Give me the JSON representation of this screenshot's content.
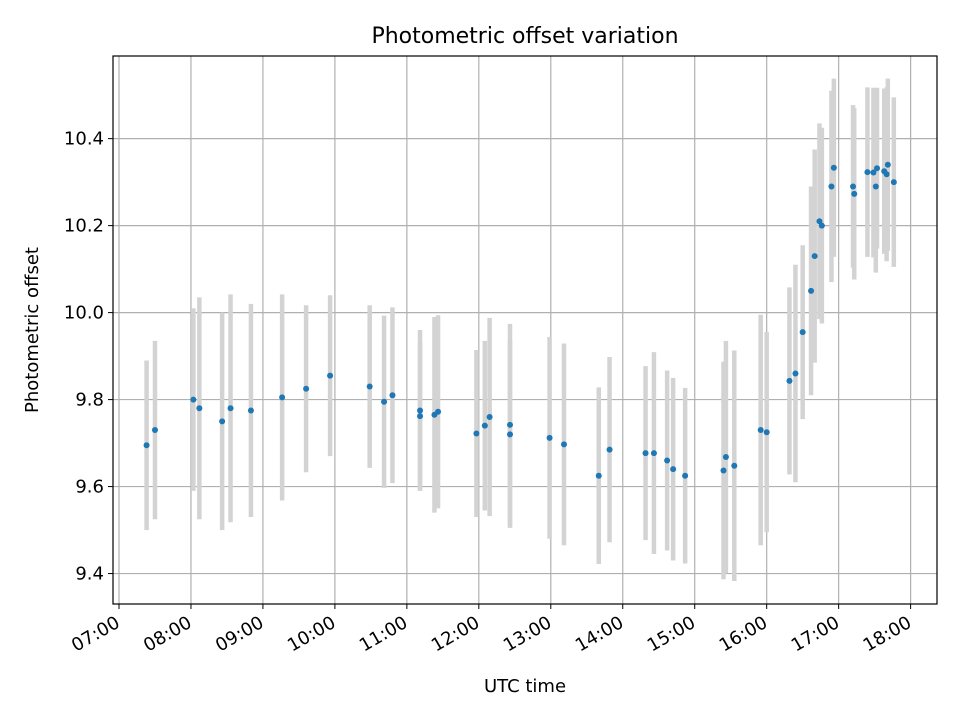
{
  "chart_data": {
    "type": "scatter",
    "title": "Photometric offset variation",
    "xlabel": "UTC time",
    "ylabel": "Photometric offset",
    "x_axis_kind": "time",
    "xlim": [
      "06:55",
      "18:22"
    ],
    "ylim": [
      9.33,
      10.59
    ],
    "x_ticks": [
      "07:00",
      "08:00",
      "09:00",
      "10:00",
      "11:00",
      "12:00",
      "13:00",
      "14:00",
      "15:00",
      "16:00",
      "17:00",
      "18:00"
    ],
    "y_ticks": [
      "9.4",
      "9.6",
      "9.8",
      "10.0",
      "10.2",
      "10.4"
    ],
    "grid": true,
    "colors": {
      "marker": "#1f77b4",
      "errorbar": "#d3d3d3",
      "grid": "#b0b0b0"
    },
    "points": [
      {
        "t": "07:23",
        "y": 9.695,
        "err": 0.195
      },
      {
        "t": "07:30",
        "y": 9.73,
        "err": 0.205
      },
      {
        "t": "08:02",
        "y": 9.8,
        "err": 0.21
      },
      {
        "t": "08:07",
        "y": 9.78,
        "err": 0.255
      },
      {
        "t": "08:26",
        "y": 9.75,
        "err": 0.25
      },
      {
        "t": "08:33",
        "y": 9.78,
        "err": 0.262
      },
      {
        "t": "08:50",
        "y": 9.775,
        "err": 0.245
      },
      {
        "t": "09:16",
        "y": 9.805,
        "err": 0.237
      },
      {
        "t": "09:36",
        "y": 9.825,
        "err": 0.192
      },
      {
        "t": "09:56",
        "y": 9.855,
        "err": 0.185
      },
      {
        "t": "10:29",
        "y": 9.83,
        "err": 0.187
      },
      {
        "t": "10:41",
        "y": 9.795,
        "err": 0.198
      },
      {
        "t": "10:48",
        "y": 9.81,
        "err": 0.202
      },
      {
        "t": "11:11",
        "y": 9.775,
        "err": 0.185
      },
      {
        "t": "11:11",
        "y": 9.762,
        "err": 0.17
      },
      {
        "t": "11:23",
        "y": 9.765,
        "err": 0.225
      },
      {
        "t": "11:26",
        "y": 9.772,
        "err": 0.222
      },
      {
        "t": "11:58",
        "y": 9.722,
        "err": 0.192
      },
      {
        "t": "12:05",
        "y": 9.74,
        "err": 0.195
      },
      {
        "t": "12:09",
        "y": 9.76,
        "err": 0.228
      },
      {
        "t": "12:26",
        "y": 9.742,
        "err": 0.232
      },
      {
        "t": "12:26",
        "y": 9.72,
        "err": 0.215
      },
      {
        "t": "12:59",
        "y": 9.712,
        "err": 0.232
      },
      {
        "t": "13:11",
        "y": 9.697,
        "err": 0.232
      },
      {
        "t": "13:40",
        "y": 9.625,
        "err": 0.203
      },
      {
        "t": "13:49",
        "y": 9.685,
        "err": 0.213
      },
      {
        "t": "14:19",
        "y": 9.677,
        "err": 0.2
      },
      {
        "t": "14:26",
        "y": 9.677,
        "err": 0.232
      },
      {
        "t": "14:37",
        "y": 9.66,
        "err": 0.207
      },
      {
        "t": "14:42",
        "y": 9.64,
        "err": 0.21
      },
      {
        "t": "14:52",
        "y": 9.625,
        "err": 0.202
      },
      {
        "t": "15:24",
        "y": 9.637,
        "err": 0.25
      },
      {
        "t": "15:26",
        "y": 9.668,
        "err": 0.267
      },
      {
        "t": "15:33",
        "y": 9.648,
        "err": 0.265
      },
      {
        "t": "15:55",
        "y": 9.73,
        "err": 0.265
      },
      {
        "t": "16:00",
        "y": 9.725,
        "err": 0.23
      },
      {
        "t": "16:19",
        "y": 9.843,
        "err": 0.215
      },
      {
        "t": "16:24",
        "y": 9.86,
        "err": 0.25
      },
      {
        "t": "16:30",
        "y": 9.955,
        "err": 0.2
      },
      {
        "t": "16:37",
        "y": 10.05,
        "err": 0.24
      },
      {
        "t": "16:40",
        "y": 10.13,
        "err": 0.245
      },
      {
        "t": "16:44",
        "y": 10.21,
        "err": 0.225
      },
      {
        "t": "16:46",
        "y": 10.2,
        "err": 0.225
      },
      {
        "t": "16:54",
        "y": 10.29,
        "err": 0.22
      },
      {
        "t": "16:56",
        "y": 10.333,
        "err": 0.205
      },
      {
        "t": "17:12",
        "y": 10.29,
        "err": 0.187
      },
      {
        "t": "17:13",
        "y": 10.273,
        "err": 0.197
      },
      {
        "t": "17:24",
        "y": 10.323,
        "err": 0.195
      },
      {
        "t": "17:29",
        "y": 10.322,
        "err": 0.195
      },
      {
        "t": "17:31",
        "y": 10.29,
        "err": 0.198
      },
      {
        "t": "17:32",
        "y": 10.332,
        "err": 0.185
      },
      {
        "t": "17:38",
        "y": 10.325,
        "err": 0.19
      },
      {
        "t": "17:40",
        "y": 10.318,
        "err": 0.2
      },
      {
        "t": "17:41",
        "y": 10.34,
        "err": 0.198
      },
      {
        "t": "17:46",
        "y": 10.3,
        "err": 0.195
      }
    ]
  }
}
